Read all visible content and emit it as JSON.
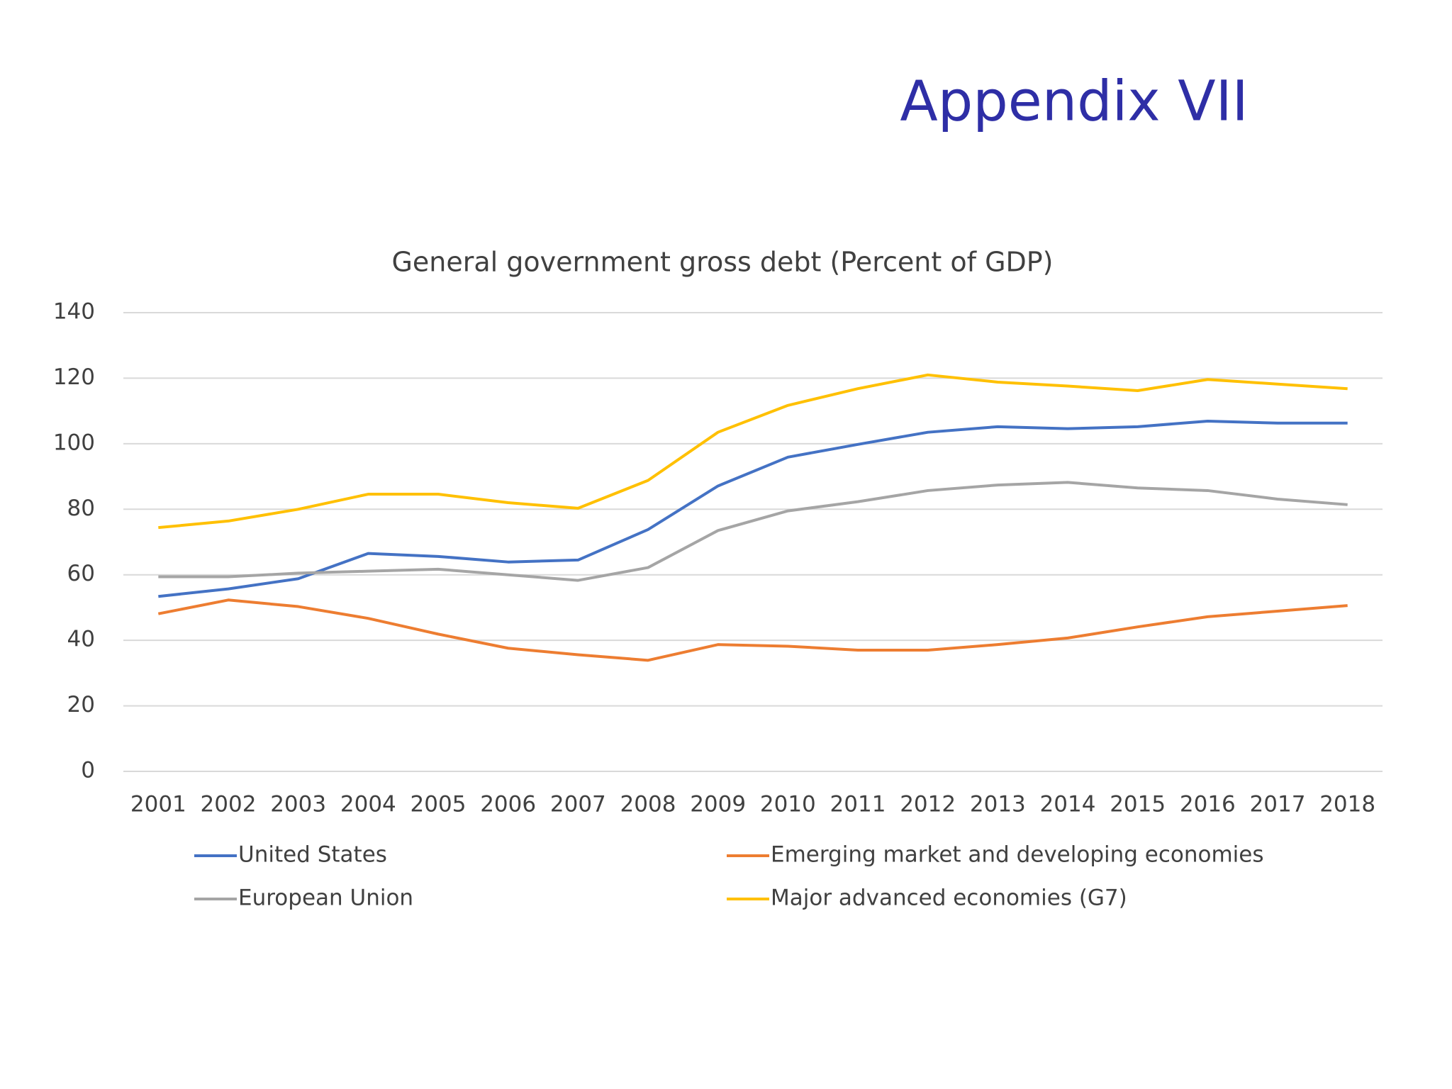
{
  "slide_title": "Appendix VII",
  "chart_data": {
    "type": "line",
    "title": "General government gross debt (Percent of GDP)",
    "categories": [
      "2001",
      "2002",
      "2003",
      "2004",
      "2005",
      "2006",
      "2007",
      "2008",
      "2009",
      "2010",
      "2011",
      "2012",
      "2013",
      "2014",
      "2015",
      "2016",
      "2017",
      "2018"
    ],
    "series": [
      {
        "name": "United States",
        "color": "#4472c4",
        "values": [
          53.4,
          55.7,
          58.8,
          66.5,
          65.6,
          63.9,
          64.5,
          73.8,
          87.1,
          95.9,
          99.8,
          103.5,
          105.2,
          104.6,
          105.2,
          106.9,
          106.3,
          106.3
        ]
      },
      {
        "name": "Emerging market and developing economies",
        "color": "#ed7d31",
        "values": [
          48.1,
          52.3,
          50.3,
          46.7,
          41.9,
          37.6,
          35.6,
          33.9,
          38.7,
          38.2,
          37.0,
          37.0,
          38.7,
          40.7,
          44.1,
          47.2,
          48.9,
          50.6
        ]
      },
      {
        "name": "European Union",
        "color": "#a5a5a5",
        "values": [
          59.4,
          59.4,
          60.5,
          61.1,
          61.7,
          60.0,
          58.3,
          62.2,
          73.5,
          79.5,
          82.3,
          85.7,
          87.4,
          88.2,
          86.5,
          85.7,
          83.1,
          81.4
        ]
      },
      {
        "name": "Major advanced economies (G7)",
        "color": "#ffc000",
        "values": [
          74.4,
          76.4,
          80.0,
          84.6,
          84.6,
          82.0,
          80.3,
          88.8,
          103.5,
          111.7,
          116.8,
          121.0,
          118.8,
          117.6,
          116.2,
          119.6,
          118.2,
          116.8
        ]
      }
    ],
    "ylim": [
      0,
      140
    ],
    "yticks": [
      0,
      20,
      40,
      60,
      80,
      100,
      120,
      140
    ],
    "grid": true,
    "legend": "bottom"
  }
}
